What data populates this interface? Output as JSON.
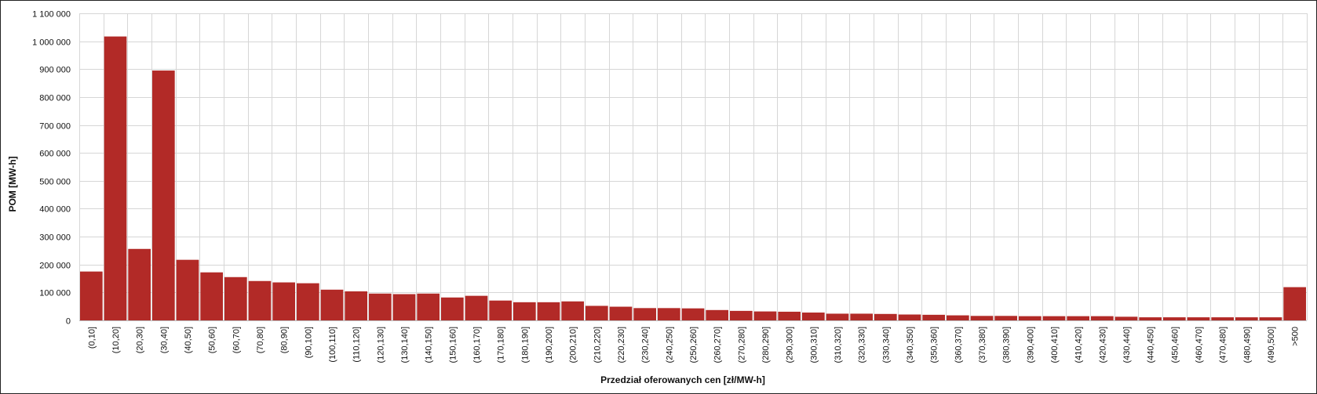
{
  "chart_data": {
    "type": "bar",
    "title": "",
    "xlabel": "Przedział oferowanych cen [zł/MW-h]",
    "ylabel": "POM [MW-h]",
    "ylim": [
      0,
      1100000
    ],
    "yticks": [
      0,
      100000,
      200000,
      300000,
      400000,
      500000,
      600000,
      700000,
      800000,
      900000,
      1000000,
      1100000
    ],
    "ytick_labels": [
      "0",
      "100 000",
      "200 000",
      "300 000",
      "400 000",
      "500 000",
      "600 000",
      "700 000",
      "800 000",
      "900 000",
      "1 000 000",
      "1 100 000"
    ],
    "grid": true,
    "bar_color": "#b22a27",
    "categories": [
      "(0,10]",
      "(10,20]",
      "(20,30]",
      "(30,40]",
      "(40,50]",
      "(50,60]",
      "(60,70]",
      "(70,80]",
      "(80,90]",
      "(90,100]",
      "(100,110]",
      "(110,120]",
      "(120,130]",
      "(130,140]",
      "(140,150]",
      "(150,160]",
      "(160,170]",
      "(170,180]",
      "(180,190]",
      "(190,200]",
      "(200,210]",
      "(210,220]",
      "(220,230]",
      "(230,240]",
      "(240,250]",
      "(250,260]",
      "(260,270]",
      "(270,280]",
      "(280,290]",
      "(290,300]",
      "(300,310]",
      "(310,320]",
      "(320,330]",
      "(330,340]",
      "(340,350]",
      "(350,360]",
      "(360,370]",
      "(370,380]",
      "(380,390]",
      "(390,400]",
      "(400,410]",
      "(410,420]",
      "(420,430]",
      "(430,440]",
      "(440,450]",
      "(450,460]",
      "(460,470]",
      "(470,480]",
      "(480,490]",
      "(490,500]",
      ">500"
    ],
    "values": [
      175000,
      1017000,
      256000,
      895000,
      217000,
      172000,
      155000,
      141000,
      136000,
      133000,
      110000,
      104000,
      96000,
      94000,
      96000,
      82000,
      88000,
      71000,
      65000,
      65000,
      68000,
      52000,
      49000,
      44000,
      44000,
      43000,
      37000,
      34000,
      32000,
      31000,
      28000,
      24000,
      24000,
      23000,
      21000,
      20000,
      18000,
      16000,
      16000,
      15000,
      15000,
      15000,
      15000,
      13000,
      11000,
      11000,
      11000,
      11000,
      11000,
      11000,
      119000
    ]
  }
}
